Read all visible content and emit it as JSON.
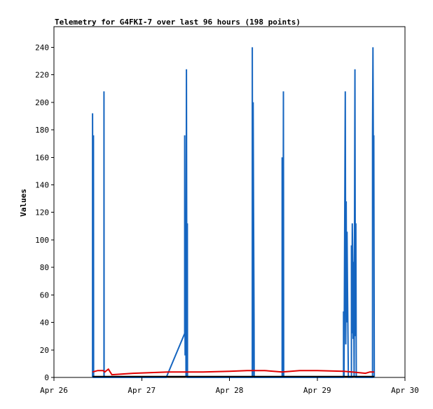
{
  "chart_data": {
    "type": "line",
    "title": "Telemetry for G4FKI-7 over last 96 hours (198 points)",
    "ylabel": "Values",
    "xlabel": "",
    "ylim": [
      0,
      255
    ],
    "xlim_days": [
      0,
      4
    ],
    "x_ticks": [
      {
        "value": 0,
        "label": "Apr 26"
      },
      {
        "value": 1,
        "label": "Apr 27"
      },
      {
        "value": 2,
        "label": "Apr 28"
      },
      {
        "value": 3,
        "label": "Apr 29"
      },
      {
        "value": 4,
        "label": "Apr 30"
      }
    ],
    "y_ticks": [
      0,
      20,
      40,
      60,
      80,
      100,
      120,
      140,
      160,
      180,
      200,
      220,
      240
    ],
    "grid": false,
    "series": [
      {
        "color": "#1565c0",
        "points": [
          [
            0.44,
            0
          ],
          [
            0.44,
            192
          ],
          [
            0.445,
            64
          ],
          [
            0.45,
            176
          ],
          [
            0.452,
            0
          ],
          [
            0.57,
            0
          ],
          [
            0.57,
            208
          ],
          [
            0.572,
            0
          ],
          [
            1.28,
            0
          ],
          [
            1.49,
            32
          ],
          [
            1.49,
            176
          ],
          [
            1.495,
            16
          ],
          [
            1.5,
            88
          ],
          [
            1.505,
            0
          ],
          [
            1.51,
            224
          ],
          [
            1.515,
            0
          ],
          [
            1.52,
            112
          ],
          [
            1.522,
            0
          ],
          [
            2.26,
            0
          ],
          [
            2.26,
            240
          ],
          [
            2.265,
            0
          ],
          [
            2.27,
            200
          ],
          [
            2.275,
            120
          ],
          [
            2.28,
            40
          ],
          [
            2.282,
            0
          ],
          [
            2.6,
            0
          ],
          [
            2.6,
            160
          ],
          [
            2.605,
            104
          ],
          [
            2.61,
            0
          ],
          [
            2.615,
            208
          ],
          [
            2.618,
            0
          ],
          [
            3.3,
            0
          ],
          [
            3.3,
            48
          ],
          [
            3.305,
            0
          ],
          [
            3.32,
            208
          ],
          [
            3.325,
            24
          ],
          [
            3.33,
            128
          ],
          [
            3.335,
            40
          ],
          [
            3.34,
            106
          ],
          [
            3.345,
            64
          ],
          [
            3.35,
            32
          ],
          [
            3.355,
            0
          ],
          [
            3.39,
            0
          ],
          [
            3.39,
            96
          ],
          [
            3.395,
            32
          ],
          [
            3.4,
            112
          ],
          [
            3.405,
            84
          ],
          [
            3.41,
            28
          ],
          [
            3.415,
            84
          ],
          [
            3.42,
            0
          ],
          [
            3.43,
            224
          ],
          [
            3.435,
            30
          ],
          [
            3.44,
            112
          ],
          [
            3.445,
            0
          ],
          [
            3.63,
            0
          ],
          [
            3.63,
            176
          ],
          [
            3.635,
            240
          ],
          [
            3.64,
            160
          ],
          [
            3.645,
            176
          ],
          [
            3.65,
            0
          ]
        ]
      },
      {
        "color": "#e00000",
        "points": [
          [
            0.44,
            4
          ],
          [
            0.5,
            5
          ],
          [
            0.56,
            5
          ],
          [
            0.58,
            4
          ],
          [
            0.62,
            6
          ],
          [
            0.66,
            2
          ],
          [
            0.9,
            3
          ],
          [
            1.3,
            4
          ],
          [
            1.7,
            4
          ],
          [
            2.0,
            4.5
          ],
          [
            2.2,
            5
          ],
          [
            2.4,
            5
          ],
          [
            2.6,
            4
          ],
          [
            2.8,
            5
          ],
          [
            3.0,
            5
          ],
          [
            3.3,
            4.5
          ],
          [
            3.4,
            4
          ],
          [
            3.55,
            3
          ],
          [
            3.6,
            4
          ],
          [
            3.65,
            4
          ]
        ]
      },
      {
        "color": "#000000",
        "points": [
          [
            0.44,
            0.6
          ],
          [
            3.65,
            0.6
          ]
        ]
      }
    ]
  }
}
